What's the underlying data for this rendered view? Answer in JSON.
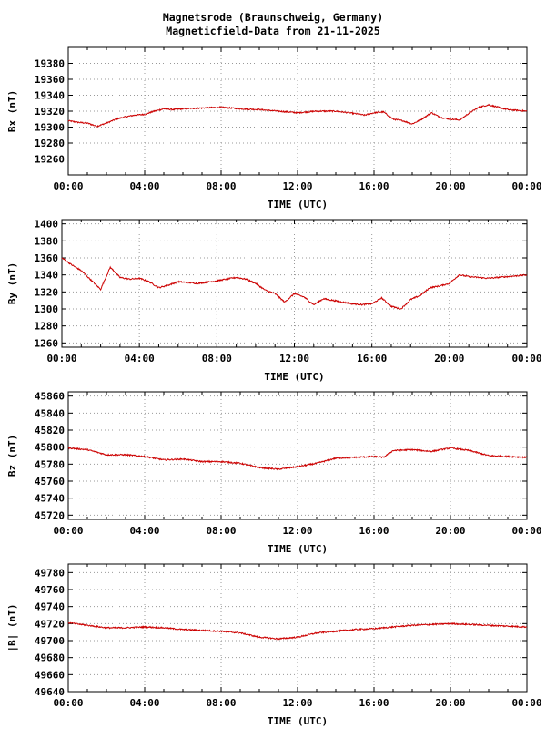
{
  "header": {
    "title": "Magnetsrode (Braunschweig, Germany)",
    "subtitle": "Magneticfield-Data from 21-11-2025"
  },
  "colors": {
    "series": "#cc0000",
    "grid": "#999999",
    "axis": "#000000"
  },
  "chart_data": [
    {
      "type": "line",
      "xlabel": "TIME (UTC)",
      "ylabel": "Bx (nT)",
      "xlim": [
        0,
        24
      ],
      "ylim": [
        19240,
        19400
      ],
      "grid": true,
      "xticks": [
        "00:00",
        "04:00",
        "08:00",
        "12:00",
        "16:00",
        "20:00",
        "00:00"
      ],
      "yticks": [
        19260,
        19280,
        19300,
        19320,
        19340,
        19360,
        19380
      ],
      "series": [
        {
          "x": [
            0,
            0.5,
            1,
            1.5,
            2,
            2.5,
            3,
            3.5,
            4,
            4.5,
            5,
            5.5,
            6,
            7,
            8,
            9,
            10,
            11,
            12,
            13,
            14,
            15,
            15.5,
            16,
            16.5,
            17,
            17.5,
            18,
            18.5,
            19,
            19.5,
            20,
            20.5,
            21,
            21.5,
            22,
            22.5,
            23,
            24
          ],
          "y": [
            19308,
            19306,
            19305,
            19301,
            19305,
            19310,
            19313,
            19315,
            19316,
            19320,
            19323,
            19322,
            19323,
            19324,
            19325,
            19323,
            19322,
            19320,
            19318,
            19320,
            19320,
            19317,
            19315,
            19318,
            19319,
            19310,
            19308,
            19304,
            19310,
            19318,
            19312,
            19310,
            19309,
            19318,
            19325,
            19328,
            19325,
            19322,
            19320
          ]
        }
      ]
    },
    {
      "type": "line",
      "xlabel": "TIME (UTC)",
      "ylabel": "By (nT)",
      "xlim": [
        0,
        24
      ],
      "ylim": [
        1255,
        1405
      ],
      "grid": true,
      "xticks": [
        "00:00",
        "04:00",
        "08:00",
        "12:00",
        "16:00",
        "20:00",
        "00:00"
      ],
      "yticks": [
        1260,
        1280,
        1300,
        1320,
        1340,
        1360,
        1380,
        1400
      ],
      "series": [
        {
          "x": [
            0,
            0.5,
            1,
            1.5,
            2,
            2.5,
            3,
            3.5,
            4,
            4.5,
            5,
            5.5,
            6,
            7,
            8,
            9,
            9.5,
            10,
            10.5,
            11,
            11.5,
            12,
            12.5,
            13,
            13.5,
            14,
            14.5,
            15,
            15.5,
            16,
            16.5,
            17,
            17.5,
            18,
            18.5,
            19,
            19.5,
            20,
            20.5,
            21,
            22,
            23,
            24
          ],
          "y": [
            1360,
            1352,
            1345,
            1334,
            1323,
            1349,
            1337,
            1335,
            1336,
            1332,
            1325,
            1328,
            1332,
            1330,
            1333,
            1337,
            1335,
            1330,
            1322,
            1318,
            1308,
            1318,
            1314,
            1305,
            1312,
            1310,
            1308,
            1306,
            1305,
            1306,
            1313,
            1303,
            1300,
            1311,
            1316,
            1325,
            1327,
            1330,
            1340,
            1338,
            1336,
            1338,
            1340
          ]
        }
      ]
    },
    {
      "type": "line",
      "xlabel": "TIME (UTC)",
      "ylabel": "Bz (nT)",
      "xlim": [
        0,
        24
      ],
      "ylim": [
        45715,
        45865
      ],
      "grid": true,
      "xticks": [
        "00:00",
        "04:00",
        "08:00",
        "12:00",
        "16:00",
        "20:00",
        "00:00"
      ],
      "yticks": [
        45720,
        45740,
        45760,
        45780,
        45800,
        45820,
        45840,
        45860
      ],
      "series": [
        {
          "x": [
            0,
            1,
            2,
            3,
            4,
            5,
            6,
            7,
            8,
            9,
            10,
            11,
            12,
            13,
            14,
            15,
            16,
            16.5,
            17,
            18,
            19,
            20,
            21,
            22,
            23,
            24
          ],
          "y": [
            45799,
            45797,
            45791,
            45791,
            45789,
            45785,
            45786,
            45783,
            45783,
            45781,
            45776,
            45774,
            45777,
            45781,
            45787,
            45788,
            45789,
            45788,
            45796,
            45797,
            45795,
            45799,
            45796,
            45790,
            45789,
            45788
          ]
        }
      ]
    },
    {
      "type": "line",
      "xlabel": "TIME (UTC)",
      "ylabel": "|B| (nT)",
      "xlim": [
        0,
        24
      ],
      "ylim": [
        49640,
        49790
      ],
      "grid": true,
      "xticks": [
        "00:00",
        "04:00",
        "08:00",
        "12:00",
        "16:00",
        "20:00",
        "00:00"
      ],
      "yticks": [
        49640,
        49660,
        49680,
        49700,
        49720,
        49740,
        49760,
        49780
      ],
      "series": [
        {
          "x": [
            0,
            1,
            2,
            3,
            4,
            5,
            6,
            7,
            8,
            9,
            10,
            11,
            12,
            13,
            14,
            15,
            16,
            17,
            18,
            19,
            20,
            21,
            22,
            23,
            24
          ],
          "y": [
            49721,
            49718,
            49715,
            49715,
            49716,
            49715,
            49713,
            49712,
            49711,
            49709,
            49704,
            49702,
            49704,
            49709,
            49711,
            49713,
            49714,
            49716,
            49718,
            49719,
            49720,
            49719,
            49718,
            49717,
            49716
          ]
        }
      ]
    }
  ]
}
